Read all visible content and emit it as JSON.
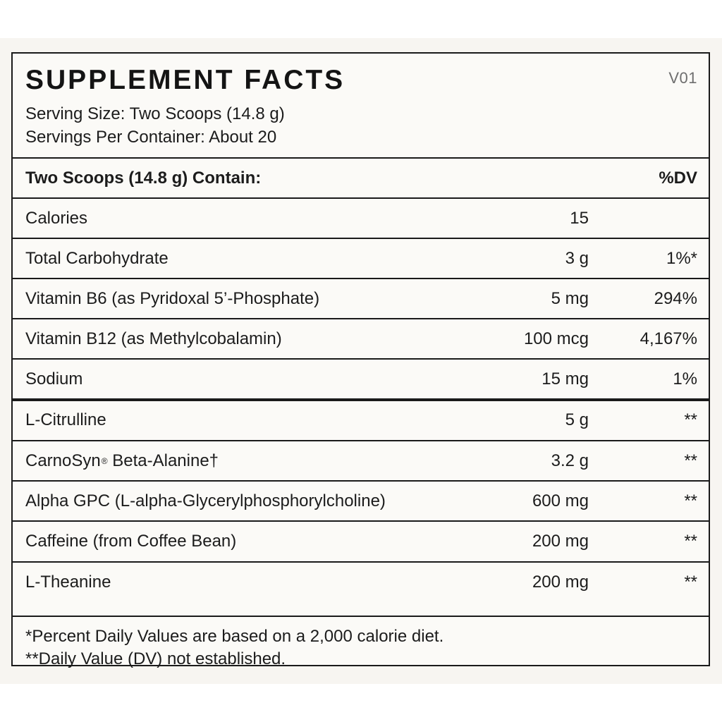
{
  "label": {
    "title": "SUPPLEMENT FACTS",
    "version": "V01",
    "serving_size": "Serving Size: Two Scoops (14.8 g)",
    "servings_per_container": "Servings Per Container: About 20",
    "header": {
      "contain": "Two Scoops (14.8 g) Contain:",
      "dv": "%DV"
    },
    "rows": [
      {
        "name": "Calories",
        "amount": "15",
        "dv": ""
      },
      {
        "name": "Total Carbohydrate",
        "amount": "3 g",
        "dv": "1%*"
      },
      {
        "name": "Vitamin B6 (as Pyridoxal 5’-Phosphate)",
        "amount": "5 mg",
        "dv": "294%"
      },
      {
        "name": "Vitamin B12 (as Methylcobalamin)",
        "amount": "100 mcg",
        "dv": "4,167%"
      },
      {
        "name": "Sodium",
        "amount": "15 mg",
        "dv": "1%"
      },
      {
        "name": "L-Citrulline",
        "amount": "5 g",
        "dv": "**"
      },
      {
        "name": "CarnoSyn",
        "name_mark": "®",
        "name_rest": " Beta-Alanine†",
        "amount": "3.2 g",
        "dv": "**"
      },
      {
        "name": "Alpha GPC (L-alpha-Glycerylphosphorylcholine)",
        "amount": "600 mg",
        "dv": "**"
      },
      {
        "name": "Caffeine (from Coffee Bean)",
        "amount": "200 mg",
        "dv": "**"
      },
      {
        "name": "L-Theanine",
        "amount": "200 mg",
        "dv": "**"
      }
    ],
    "footnotes": [
      "*Percent Daily Values are based on a 2,000 calorie diet.",
      "**Daily Value (DV) not established."
    ]
  }
}
